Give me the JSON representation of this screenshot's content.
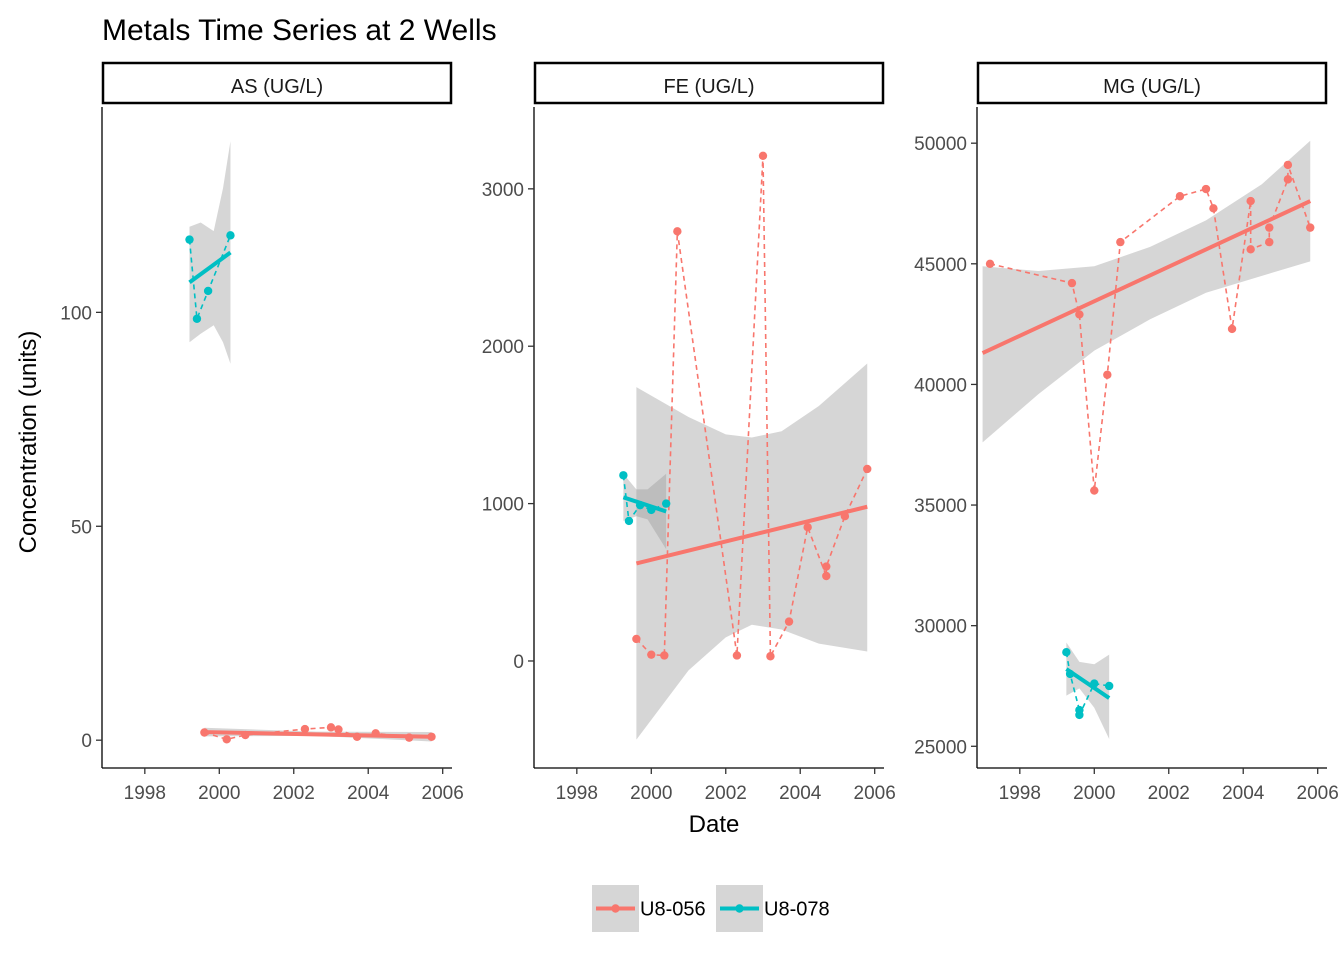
{
  "chart_data": {
    "type": "line",
    "title": "Metals Time Series at 2 Wells",
    "xlabel": "Date",
    "ylabel": "Concentration (units)",
    "x_ticks": [
      "1998",
      "2000",
      "2002",
      "2004",
      "2006"
    ],
    "legend": {
      "position": "bottom",
      "entries": [
        {
          "name": "U8-056",
          "color": "#F8766D"
        },
        {
          "name": "U8-078",
          "color": "#00BFC4"
        }
      ]
    },
    "panels": [
      {
        "strip": "AS (UG/L)",
        "xlim": [
          1996.85,
          2006.25
        ],
        "ylim": [
          -6.5,
          148
        ],
        "y_ticks": [
          0,
          50,
          100
        ],
        "series": [
          {
            "name": "U8-056",
            "color": "#F8766D",
            "points": [
              [
                1999.6,
                1.8
              ],
              [
                2000.2,
                0.2
              ],
              [
                2000.7,
                1.2
              ],
              [
                2002.3,
                2.6
              ],
              [
                2003.0,
                3.0
              ],
              [
                2003.2,
                2.5
              ],
              [
                2003.7,
                0.8
              ],
              [
                2004.2,
                1.6
              ],
              [
                2005.1,
                0.6
              ],
              [
                2005.7,
                0.8
              ]
            ],
            "trend": [
              [
                1999.6,
                1.9
              ],
              [
                2005.7,
                0.8
              ]
            ],
            "band_upper": [
              [
                1999.6,
                2.9
              ],
              [
                2002.6,
                2.0
              ],
              [
                2005.7,
                1.9
              ]
            ],
            "band_lower": [
              [
                1999.6,
                0.9
              ],
              [
                2002.6,
                1.0
              ],
              [
                2005.7,
                -0.3
              ]
            ]
          },
          {
            "name": "U8-078",
            "color": "#00BFC4",
            "points": [
              [
                1999.2,
                117
              ],
              [
                1999.4,
                98.5
              ],
              [
                1999.7,
                105
              ],
              [
                2000.3,
                118
              ]
            ],
            "trend": [
              [
                1999.2,
                107
              ],
              [
                2000.3,
                114
              ]
            ],
            "band_upper": [
              [
                1999.2,
                120
              ],
              [
                1999.5,
                121
              ],
              [
                1999.85,
                119
              ],
              [
                2000.1,
                129
              ],
              [
                2000.3,
                140
              ]
            ],
            "band_lower": [
              [
                1999.2,
                93
              ],
              [
                1999.5,
                95
              ],
              [
                1999.85,
                97
              ],
              [
                2000.1,
                93
              ],
              [
                2000.3,
                88
              ]
            ]
          }
        ]
      },
      {
        "strip": "FE (UG/L)",
        "xlim": [
          1996.85,
          2006.25
        ],
        "ylim": [
          -680,
          3520
        ],
        "y_ticks": [
          0,
          1000,
          2000,
          3000
        ],
        "series": [
          {
            "name": "U8-056",
            "color": "#F8766D",
            "points": [
              [
                1999.6,
                140
              ],
              [
                2000.0,
                40
              ],
              [
                2000.35,
                35
              ],
              [
                2000.7,
                2730
              ],
              [
                2002.3,
                35
              ],
              [
                2003.0,
                3210
              ],
              [
                2003.2,
                30
              ],
              [
                2003.7,
                250
              ],
              [
                2004.2,
                850
              ],
              [
                2004.7,
                540
              ],
              [
                2004.7,
                600
              ],
              [
                2005.2,
                920
              ],
              [
                2005.8,
                1220
              ]
            ],
            "trend": [
              [
                1999.6,
                620
              ],
              [
                2005.8,
                980
              ]
            ],
            "band_upper": [
              [
                1999.6,
                1740
              ],
              [
                2001.0,
                1550
              ],
              [
                2002.0,
                1440
              ],
              [
                2002.7,
                1420
              ],
              [
                2003.5,
                1460
              ],
              [
                2004.5,
                1620
              ],
              [
                2005.8,
                1890
              ]
            ],
            "band_lower": [
              [
                1999.6,
                -500
              ],
              [
                2001.0,
                -60
              ],
              [
                2002.0,
                150
              ],
              [
                2002.7,
                230
              ],
              [
                2003.5,
                200
              ],
              [
                2004.5,
                110
              ],
              [
                2005.8,
                60
              ]
            ]
          },
          {
            "name": "U8-078",
            "color": "#00BFC4",
            "points": [
              [
                1999.25,
                1180
              ],
              [
                1999.4,
                890
              ],
              [
                1999.7,
                990
              ],
              [
                2000.0,
                960
              ],
              [
                2000.4,
                1000
              ]
            ],
            "trend": [
              [
                1999.25,
                1040
              ],
              [
                2000.4,
                950
              ]
            ],
            "band_upper": [
              [
                1999.25,
                1190
              ],
              [
                1999.6,
                1090
              ],
              [
                1999.9,
                1090
              ],
              [
                2000.4,
                1190
              ]
            ],
            "band_lower": [
              [
                1999.25,
                890
              ],
              [
                1999.6,
                920
              ],
              [
                1999.9,
                900
              ],
              [
                2000.4,
                710
              ]
            ]
          }
        ]
      },
      {
        "strip": "MG (UG/L)",
        "xlim": [
          1996.85,
          2006.25
        ],
        "ylim": [
          24100,
          51500
        ],
        "y_ticks": [
          25000,
          30000,
          35000,
          40000,
          45000,
          50000
        ],
        "series": [
          {
            "name": "U8-056",
            "color": "#F8766D",
            "points": [
              [
                1997.2,
                45000
              ],
              [
                1999.4,
                44200
              ],
              [
                1999.6,
                42900
              ],
              [
                2000.0,
                35600
              ],
              [
                2000.35,
                40400
              ],
              [
                2000.7,
                45900
              ],
              [
                2002.3,
                47800
              ],
              [
                2003.0,
                48100
              ],
              [
                2003.2,
                47300
              ],
              [
                2003.7,
                42300
              ],
              [
                2004.2,
                47600
              ],
              [
                2004.2,
                45600
              ],
              [
                2004.7,
                45900
              ],
              [
                2004.7,
                46500
              ],
              [
                2005.2,
                48500
              ],
              [
                2005.2,
                49100
              ],
              [
                2005.8,
                46500
              ]
            ],
            "trend": [
              [
                1997.0,
                41300
              ],
              [
                2005.8,
                47600
              ]
            ],
            "band_upper": [
              [
                1997.0,
                44900
              ],
              [
                1998.5,
                44700
              ],
              [
                2000.0,
                44900
              ],
              [
                2001.5,
                45700
              ],
              [
                2003.0,
                46800
              ],
              [
                2004.5,
                48300
              ],
              [
                2005.8,
                50100
              ]
            ],
            "band_lower": [
              [
                1997.0,
                37600
              ],
              [
                1998.5,
                39600
              ],
              [
                2000.0,
                41400
              ],
              [
                2001.5,
                42700
              ],
              [
                2003.0,
                43800
              ],
              [
                2004.5,
                44500
              ],
              [
                2005.8,
                45100
              ]
            ]
          },
          {
            "name": "U8-078",
            "color": "#00BFC4",
            "points": [
              [
                1999.25,
                28900
              ],
              [
                1999.35,
                28000
              ],
              [
                1999.6,
                26500
              ],
              [
                1999.6,
                26300
              ],
              [
                2000.0,
                27600
              ],
              [
                2000.4,
                27500
              ]
            ],
            "trend": [
              [
                1999.25,
                28200
              ],
              [
                2000.4,
                27000
              ]
            ],
            "band_upper": [
              [
                1999.25,
                29300
              ],
              [
                1999.6,
                28500
              ],
              [
                2000.0,
                28400
              ],
              [
                2000.4,
                28800
              ]
            ],
            "band_lower": [
              [
                1999.25,
                27100
              ],
              [
                1999.6,
                27400
              ],
              [
                2000.0,
                26600
              ],
              [
                2000.4,
                25300
              ]
            ]
          }
        ]
      }
    ]
  }
}
